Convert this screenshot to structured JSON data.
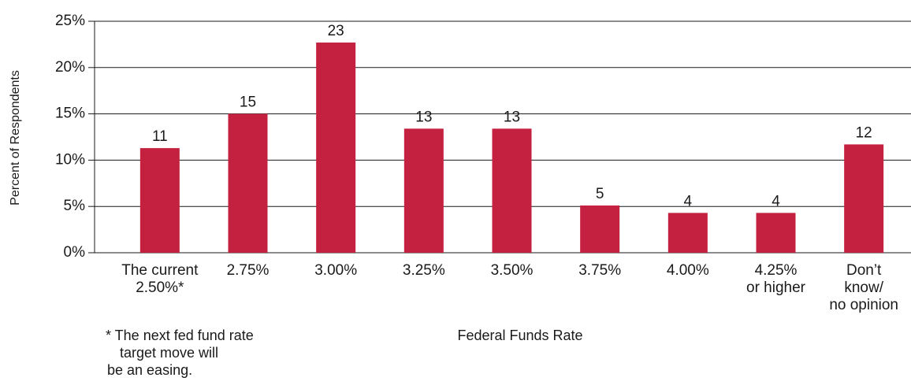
{
  "chart_data": {
    "type": "bar",
    "y_label": "Percent of Respondents",
    "x_label": "Federal Funds Rate",
    "footnote": [
      "* The next fed fund rate",
      "target move will",
      "be an easing."
    ],
    "categories": [
      [
        "The current",
        "2.50%*"
      ],
      [
        "2.75%"
      ],
      [
        "3.00%"
      ],
      [
        "3.25%"
      ],
      [
        "3.50%"
      ],
      [
        "3.75%"
      ],
      [
        "4.00%"
      ],
      [
        "4.25%",
        "or higher"
      ],
      [
        "Don’t",
        "know/",
        "no opinion"
      ]
    ],
    "values": [
      11.3,
      15,
      22.7,
      13.4,
      13.4,
      5.1,
      4.3,
      4.3,
      11.7
    ],
    "value_labels": [
      "11",
      "15",
      "23",
      "13",
      "13",
      "5",
      "4",
      "4",
      "12"
    ],
    "color": "#c4203f",
    "ylim": [
      0,
      25
    ],
    "yticks": [
      {
        "value": 0,
        "label": "0%"
      },
      {
        "value": 5,
        "label": "5%"
      },
      {
        "value": 10,
        "label": "10%"
      },
      {
        "value": 15,
        "label": "15%"
      },
      {
        "value": 20,
        "label": "20%"
      },
      {
        "value": 25,
        "label": "25%"
      }
    ],
    "grid": true
  }
}
